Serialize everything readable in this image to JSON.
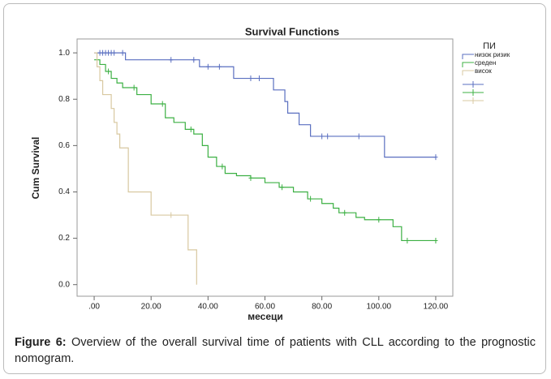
{
  "chart_data": {
    "type": "step",
    "title": "Survival Functions",
    "xlabel": "месеци",
    "ylabel": "Cum Survival",
    "legend_title": "ПИ",
    "xlim": [
      -6,
      126
    ],
    "ylim": [
      -0.05,
      1.06
    ],
    "xticks": [
      {
        "value": 0,
        "label": ".00"
      },
      {
        "value": 20,
        "label": "20.00"
      },
      {
        "value": 40,
        "label": "40.00"
      },
      {
        "value": 60,
        "label": "60.00"
      },
      {
        "value": 80,
        "label": "80.00"
      },
      {
        "value": 100,
        "label": "100.00"
      },
      {
        "value": 120,
        "label": "120.00"
      }
    ],
    "yticks": [
      {
        "value": 0,
        "label": "0.0"
      },
      {
        "value": 0.2,
        "label": "0.2"
      },
      {
        "value": 0.4,
        "label": "0.4"
      },
      {
        "value": 0.6,
        "label": "0.6"
      },
      {
        "value": 0.8,
        "label": "0.8"
      },
      {
        "value": 1,
        "label": "1.0"
      }
    ],
    "series": [
      {
        "name": "низок ризик",
        "color": "#5a6fc0",
        "x": [
          0,
          11,
          37,
          49,
          63,
          67,
          68,
          72,
          76,
          102,
          120
        ],
        "values": [
          1,
          0.97,
          0.94,
          0.89,
          0.84,
          0.79,
          0.74,
          0.69,
          0.64,
          0.55,
          0.55
        ],
        "censored_x": [
          2,
          3,
          4,
          5,
          6,
          7,
          10,
          27,
          35,
          40,
          44,
          55,
          58,
          80,
          82,
          93,
          120
        ],
        "censored_values": [
          1,
          1,
          1,
          1,
          1,
          1,
          1,
          0.97,
          0.97,
          0.94,
          0.94,
          0.89,
          0.89,
          0.64,
          0.64,
          0.64,
          0.55
        ]
      },
      {
        "name": "среден",
        "color": "#3cb043",
        "x": [
          0,
          2,
          4,
          6,
          8,
          10,
          15,
          20,
          25,
          28,
          32,
          35,
          38,
          40,
          43,
          46,
          50,
          55,
          60,
          65,
          70,
          75,
          80,
          84,
          86,
          92,
          95,
          105,
          108,
          120
        ],
        "values": [
          0.97,
          0.95,
          0.92,
          0.89,
          0.87,
          0.85,
          0.82,
          0.78,
          0.72,
          0.7,
          0.67,
          0.65,
          0.6,
          0.55,
          0.51,
          0.48,
          0.47,
          0.46,
          0.44,
          0.42,
          0.4,
          0.37,
          0.35,
          0.33,
          0.31,
          0.29,
          0.28,
          0.25,
          0.19,
          0.19
        ],
        "censored_x": [
          5,
          14,
          24,
          34,
          45,
          55,
          66,
          76,
          88,
          100,
          110,
          120
        ],
        "censored_values": [
          0.92,
          0.85,
          0.78,
          0.67,
          0.51,
          0.46,
          0.42,
          0.37,
          0.31,
          0.28,
          0.19,
          0.19
        ]
      },
      {
        "name": "висок",
        "color": "#d8c8a0",
        "x": [
          0,
          1,
          2,
          3,
          6,
          7,
          8,
          9,
          12,
          20,
          33,
          36
        ],
        "values": [
          1,
          0.94,
          0.88,
          0.82,
          0.76,
          0.7,
          0.65,
          0.59,
          0.4,
          0.3,
          0.15,
          0
        ],
        "censored_x": [
          27
        ],
        "censored_values": [
          0.3
        ]
      }
    ]
  },
  "caption": {
    "label": "Figure 6:",
    "text": " Overview of the overall survival time of patients with CLL according to the prognostic nomogram."
  }
}
